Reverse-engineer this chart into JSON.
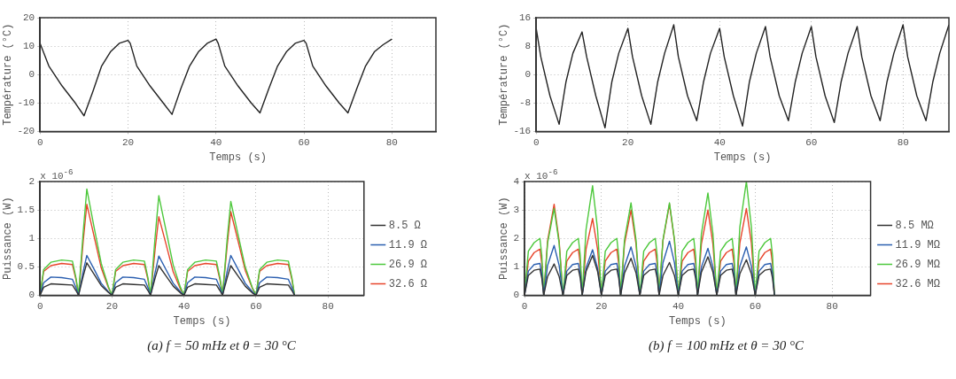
{
  "chart_data": [
    {
      "type": "line",
      "ylabel": "Température (°C)",
      "xlabel": "Temps (s)",
      "xlim": [
        0,
        90
      ],
      "xticks": [
        0,
        20,
        40,
        60,
        80
      ],
      "ylim": [
        -20,
        20
      ],
      "yticks": [
        -20,
        -10,
        0,
        10,
        20
      ],
      "grid": true,
      "color": "#222222",
      "x": [
        0,
        2,
        5,
        8,
        10,
        12,
        14,
        16,
        18,
        20,
        20.5,
        22,
        25,
        28,
        30,
        32,
        34,
        36,
        38,
        40,
        40.5,
        42,
        45,
        48,
        50,
        52,
        54,
        56,
        58,
        60,
        60.5,
        62,
        65,
        68,
        70,
        72,
        74,
        76,
        78,
        80
      ],
      "values": [
        11,
        3,
        -4,
        -10,
        -14.5,
        -6,
        3,
        8,
        11,
        12,
        11,
        3,
        -4,
        -10,
        -14,
        -5,
        3,
        8,
        11,
        12.5,
        11,
        3,
        -4,
        -10,
        -13.5,
        -5,
        3,
        8,
        11,
        12,
        11,
        3,
        -4,
        -10,
        -13.5,
        -5,
        3,
        8,
        10.5,
        12.5
      ]
    },
    {
      "type": "line",
      "ylabel": "Puissance (W)",
      "xlabel": "Temps (s)",
      "xlim": [
        0,
        90
      ],
      "xticks": [
        0,
        20,
        40,
        60,
        80
      ],
      "ylim": [
        0,
        2
      ],
      "yticks": [
        0,
        0.5,
        1,
        1.5,
        2
      ],
      "grid": true,
      "legend": "right",
      "annotations": [
        "x 10$^{-6}$",
        "(a) f = 50 mHz et θ = 30 °C"
      ],
      "x": [
        0,
        1,
        3,
        6,
        9,
        10,
        10.7,
        12,
        13,
        15,
        17,
        19,
        20,
        21,
        23,
        26,
        29,
        30,
        30.7,
        32,
        33,
        35,
        37,
        39,
        40,
        41,
        43,
        46,
        49,
        50,
        50.7,
        52,
        53,
        55,
        57,
        59,
        60,
        61,
        63,
        66,
        69,
        70,
        70.7
      ],
      "series": [
        {
          "name": "8.5 Ω",
          "color": "#333333",
          "values": [
            0,
            0.14,
            0.2,
            0.19,
            0.18,
            0.08,
            0,
            0.34,
            0.57,
            0.37,
            0.17,
            0.05,
            0,
            0.14,
            0.2,
            0.19,
            0.18,
            0.08,
            0,
            0.31,
            0.52,
            0.34,
            0.16,
            0.04,
            0,
            0.14,
            0.2,
            0.19,
            0.18,
            0.08,
            0,
            0.31,
            0.52,
            0.34,
            0.16,
            0.04,
            0,
            0.14,
            0.2,
            0.19,
            0.18,
            0.08,
            0
          ]
        },
        {
          "name": "11.9 Ω",
          "color": "#2b5fb0",
          "values": [
            0,
            0.22,
            0.32,
            0.31,
            0.28,
            0.13,
            0,
            0.42,
            0.7,
            0.46,
            0.21,
            0.06,
            0,
            0.22,
            0.32,
            0.31,
            0.28,
            0.13,
            0,
            0.41,
            0.69,
            0.45,
            0.21,
            0.06,
            0,
            0.22,
            0.32,
            0.31,
            0.28,
            0.13,
            0,
            0.42,
            0.7,
            0.46,
            0.21,
            0.06,
            0,
            0.22,
            0.32,
            0.31,
            0.28,
            0.13,
            0
          ]
        },
        {
          "name": "26.9 Ω",
          "color": "#4dc83c",
          "values": [
            0,
            0.45,
            0.58,
            0.62,
            0.6,
            0.3,
            0,
            1.12,
            1.87,
            1.2,
            0.56,
            0.15,
            0,
            0.45,
            0.58,
            0.62,
            0.6,
            0.3,
            0,
            1.05,
            1.75,
            1.14,
            0.53,
            0.14,
            0,
            0.45,
            0.58,
            0.62,
            0.6,
            0.3,
            0,
            0.99,
            1.65,
            1.07,
            0.5,
            0.13,
            0,
            0.45,
            0.58,
            0.62,
            0.6,
            0.3,
            0
          ]
        },
        {
          "name": "32.6 Ω",
          "color": "#e8452c",
          "values": [
            0,
            0.42,
            0.52,
            0.56,
            0.54,
            0.27,
            0,
            0.96,
            1.6,
            1.04,
            0.48,
            0.13,
            0,
            0.42,
            0.52,
            0.56,
            0.54,
            0.27,
            0,
            0.83,
            1.38,
            0.9,
            0.41,
            0.11,
            0,
            0.42,
            0.52,
            0.56,
            0.54,
            0.27,
            0,
            0.88,
            1.47,
            0.96,
            0.44,
            0.12,
            0,
            0.42,
            0.52,
            0.56,
            0.54,
            0.27,
            0
          ]
        }
      ]
    },
    {
      "type": "line",
      "ylabel": "Température (°C)",
      "xlabel": "Temps (s)",
      "xlim": [
        0,
        90
      ],
      "xticks": [
        0,
        20,
        40,
        60,
        80
      ],
      "ylim": [
        -16,
        16
      ],
      "yticks": [
        -16,
        -8,
        0,
        8,
        16
      ],
      "grid": true,
      "color": "#222222",
      "x": [
        0,
        1,
        3,
        5,
        6.5,
        8,
        10,
        11,
        13,
        15,
        16.5,
        18,
        20,
        21,
        23,
        25,
        26.5,
        28,
        30,
        31,
        33,
        35,
        36.5,
        38,
        40,
        41,
        43,
        45,
        46.5,
        48,
        50,
        51,
        53,
        55,
        56.5,
        58,
        60,
        61,
        63,
        65,
        66.5,
        68,
        70,
        71,
        73,
        75,
        76.5,
        78,
        80,
        81,
        83,
        85,
        86.5,
        88,
        90
      ],
      "values": [
        13,
        5,
        -6,
        -14,
        -2,
        6,
        12,
        5,
        -6,
        -15,
        -2,
        6,
        13,
        5,
        -6,
        -14,
        -2,
        6,
        14,
        5,
        -6,
        -13,
        -2,
        6,
        13,
        5,
        -6,
        -14.5,
        -2,
        6,
        13.5,
        5,
        -6,
        -13,
        -2,
        6,
        13.5,
        5,
        -6,
        -13.5,
        -2,
        6,
        13.5,
        5,
        -6,
        -13,
        -2,
        6,
        14,
        5,
        -6,
        -13,
        -2,
        6,
        14
      ]
    },
    {
      "type": "line",
      "ylabel": "Puissance (W)",
      "xlabel": "Temps (s)",
      "xlim": [
        0,
        90
      ],
      "xticks": [
        0,
        20,
        40,
        60,
        80
      ],
      "ylim": [
        0,
        4
      ],
      "yticks": [
        0,
        1,
        2,
        3,
        4
      ],
      "grid": true,
      "legend": "right",
      "annotations": [
        "x 10$^{-6}$",
        "(b) f = 100 mHz et θ = 30 °C"
      ],
      "x": [
        0,
        1,
        2.5,
        4,
        4.5,
        5,
        6,
        7.7,
        9,
        10,
        11,
        12.5,
        14,
        14.5,
        15,
        16,
        17.7,
        19,
        20,
        21,
        22.5,
        24,
        24.5,
        25,
        26,
        27.7,
        29,
        30,
        31,
        32.5,
        34,
        34.5,
        35,
        36,
        37.7,
        39,
        40,
        41,
        42.5,
        44,
        44.5,
        45,
        46,
        47.7,
        49,
        50,
        51,
        52.5,
        54,
        54.5,
        55,
        56,
        57.7,
        59,
        60,
        61,
        62.5,
        64,
        64.5,
        65
      ],
      "series": [
        {
          "name": "8.5 MΩ",
          "color": "#333333",
          "values": [
            0,
            0.7,
            0.88,
            0.92,
            0.6,
            0,
            0.66,
            1.1,
            0.66,
            0,
            0.7,
            0.88,
            0.92,
            0.6,
            0,
            0.84,
            1.4,
            0.84,
            0,
            0.7,
            0.88,
            0.92,
            0.6,
            0,
            0.78,
            1.3,
            0.78,
            0,
            0.7,
            0.88,
            0.92,
            0.6,
            0,
            0.69,
            1.15,
            0.69,
            0,
            0.7,
            0.88,
            0.92,
            0.6,
            0,
            0.81,
            1.35,
            0.81,
            0,
            0.7,
            0.88,
            0.92,
            0.6,
            0,
            0.75,
            1.25,
            0.75,
            0,
            0.7,
            0.88,
            0.92,
            0.6,
            0
          ]
        },
        {
          "name": "11.9 MΩ",
          "color": "#2b5fb0",
          "values": [
            0,
            0.85,
            1.08,
            1.12,
            0.75,
            0,
            1.05,
            1.75,
            1.05,
            0,
            0.85,
            1.08,
            1.12,
            0.75,
            0,
            0.96,
            1.6,
            0.96,
            0,
            0.85,
            1.08,
            1.12,
            0.75,
            0,
            1.02,
            1.7,
            1.02,
            0,
            0.85,
            1.08,
            1.12,
            0.75,
            0,
            1.14,
            1.9,
            1.14,
            0,
            0.85,
            1.08,
            1.12,
            0.75,
            0,
            0.99,
            1.65,
            0.99,
            0,
            0.85,
            1.08,
            1.12,
            0.75,
            0,
            1.02,
            1.7,
            1.02,
            0,
            0.85,
            1.08,
            1.12,
            0.75,
            0
          ]
        },
        {
          "name": "26.9 MΩ",
          "color": "#4dc83c",
          "values": [
            0,
            1.55,
            1.85,
            2,
            1.4,
            0,
            1.83,
            3.05,
            1.83,
            0,
            1.55,
            1.85,
            2,
            1.4,
            0,
            2.31,
            3.85,
            2.31,
            0,
            1.55,
            1.85,
            2,
            1.4,
            0,
            1.95,
            3.25,
            1.95,
            0,
            1.55,
            1.85,
            2,
            1.4,
            0,
            1.95,
            3.25,
            1.95,
            0,
            1.55,
            1.85,
            2,
            1.4,
            0,
            2.16,
            3.6,
            2.16,
            0,
            1.55,
            1.85,
            2,
            1.4,
            0,
            2.4,
            4,
            2.4,
            0,
            1.55,
            1.85,
            2,
            1.4,
            0
          ]
        },
        {
          "name": "32.6 MΩ",
          "color": "#e8452c",
          "values": [
            0,
            1.2,
            1.5,
            1.62,
            1.1,
            0,
            1.92,
            3.2,
            1.92,
            0,
            1.2,
            1.5,
            1.62,
            1.1,
            0,
            1.62,
            2.7,
            1.62,
            0,
            1.2,
            1.5,
            1.62,
            1.1,
            0,
            1.8,
            3,
            1.8,
            0,
            1.2,
            1.5,
            1.62,
            1.1,
            0,
            1.92,
            3.2,
            1.92,
            0,
            1.2,
            1.5,
            1.62,
            1.1,
            0,
            1.8,
            3,
            1.8,
            0,
            1.2,
            1.5,
            1.62,
            1.1,
            0,
            1.83,
            3.05,
            1.83,
            0,
            1.2,
            1.5,
            1.62,
            1.1,
            0
          ]
        }
      ]
    }
  ]
}
